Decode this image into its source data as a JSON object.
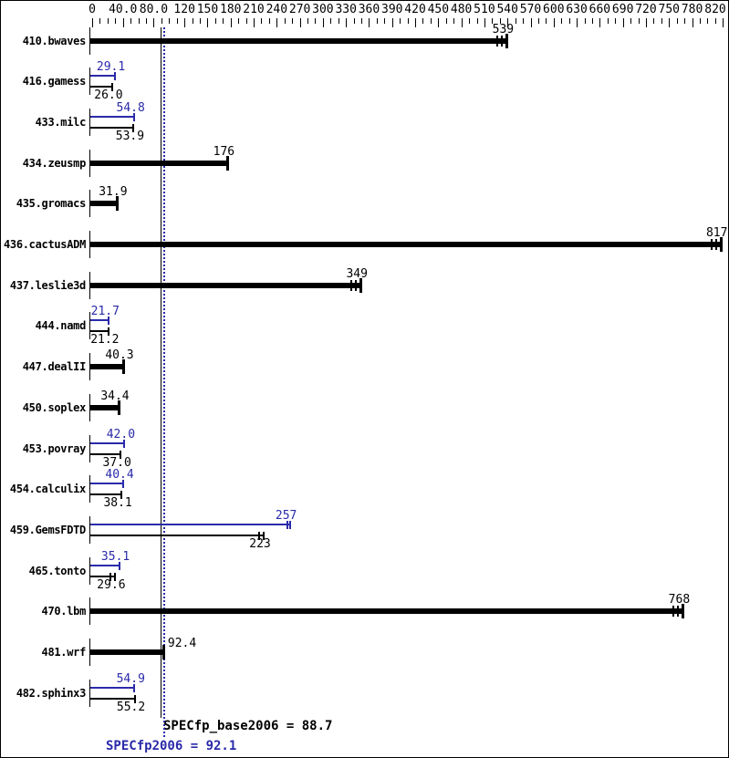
{
  "chart_data": {
    "type": "bar",
    "orientation": "horizontal",
    "title": "",
    "xlabel": "",
    "ylabel": "",
    "xlim": [
      0,
      820
    ],
    "grid": false,
    "colors": {
      "peak": "#2a2aaa",
      "base": "#000000",
      "background": "#ffffff"
    },
    "axis_ticks": [
      {
        "v": 0,
        "label": "0"
      },
      {
        "v": 40,
        "label": "40.0"
      },
      {
        "v": 80,
        "label": "80.0"
      },
      {
        "v": 120,
        "label": "120"
      },
      {
        "v": 150,
        "label": "150"
      },
      {
        "v": 180,
        "label": "180"
      },
      {
        "v": 210,
        "label": "210"
      },
      {
        "v": 240,
        "label": "240"
      },
      {
        "v": 270,
        "label": "270"
      },
      {
        "v": 300,
        "label": "300"
      },
      {
        "v": 330,
        "label": "330"
      },
      {
        "v": 360,
        "label": "360"
      },
      {
        "v": 390,
        "label": "390"
      },
      {
        "v": 420,
        "label": "420"
      },
      {
        "v": 450,
        "label": "450"
      },
      {
        "v": 480,
        "label": "480"
      },
      {
        "v": 510,
        "label": "510"
      },
      {
        "v": 540,
        "label": "540"
      },
      {
        "v": 570,
        "label": "570"
      },
      {
        "v": 600,
        "label": "600"
      },
      {
        "v": 630,
        "label": "630"
      },
      {
        "v": 660,
        "label": "660"
      },
      {
        "v": 690,
        "label": "690"
      },
      {
        "v": 720,
        "label": "720"
      },
      {
        "v": 750,
        "label": "750"
      },
      {
        "v": 780,
        "label": "780"
      },
      {
        "v": 820,
        "label": "820"
      }
    ],
    "minor_tick_step": 10,
    "rows": [
      {
        "name": "410.bwaves",
        "type": "single",
        "base": 539,
        "base_label": "539",
        "base_runs": 3
      },
      {
        "name": "416.gamess",
        "type": "pair",
        "peak": 29.1,
        "peak_label": "29.1",
        "base": 26.0,
        "base_label": "26.0"
      },
      {
        "name": "433.milc",
        "type": "pair",
        "peak": 54.8,
        "peak_label": "54.8",
        "base": 53.9,
        "base_label": "53.9"
      },
      {
        "name": "434.zeusmp",
        "type": "single",
        "base": 176,
        "base_label": "176"
      },
      {
        "name": "435.gromacs",
        "type": "single",
        "base": 31.9,
        "base_label": "31.9"
      },
      {
        "name": "436.cactusADM",
        "type": "single",
        "base": 817,
        "base_label": "817",
        "base_runs": 3
      },
      {
        "name": "437.leslie3d",
        "type": "single",
        "base": 349,
        "base_label": "349",
        "base_runs": 3
      },
      {
        "name": "444.namd",
        "type": "pair",
        "peak": 21.7,
        "peak_label": "21.7",
        "base": 21.2,
        "base_label": "21.2"
      },
      {
        "name": "447.dealII",
        "type": "single",
        "base": 40.3,
        "base_label": "40.3"
      },
      {
        "name": "450.soplex",
        "type": "single",
        "base": 34.4,
        "base_label": "34.4"
      },
      {
        "name": "453.povray",
        "type": "pair",
        "peak": 42.0,
        "peak_label": "42.0",
        "base": 37.0,
        "base_label": "37.0"
      },
      {
        "name": "454.calculix",
        "type": "pair",
        "peak": 40.4,
        "peak_label": "40.4",
        "base": 38.1,
        "base_label": "38.1"
      },
      {
        "name": "459.GemsFDTD",
        "type": "pair",
        "peak": 257,
        "peak_label": "257",
        "base": 223,
        "base_label": "223",
        "base_runs": 2,
        "peak_runs": 2
      },
      {
        "name": "465.tonto",
        "type": "pair",
        "peak": 35.1,
        "peak_label": "35.1",
        "base": 29.6,
        "base_label": "29.6",
        "base_runs": 2
      },
      {
        "name": "470.lbm",
        "type": "single",
        "base": 768,
        "base_label": "768",
        "base_runs": 3
      },
      {
        "name": "481.wrf",
        "type": "single",
        "base": 92.4,
        "base_label": "92.4",
        "label_side": "right"
      },
      {
        "name": "482.sphinx3",
        "type": "pair",
        "peak": 54.9,
        "peak_label": "54.9",
        "base": 55.2,
        "base_label": "55.2"
      }
    ],
    "reference": {
      "base": {
        "value": 88.7,
        "label": "SPECfp_base2006 = 88.7",
        "style": "solid",
        "color": "#000000"
      },
      "peak": {
        "value": 92.1,
        "label": "SPECfp2006 = 92.1",
        "style": "dotted",
        "color": "#2a2aaa"
      }
    }
  }
}
